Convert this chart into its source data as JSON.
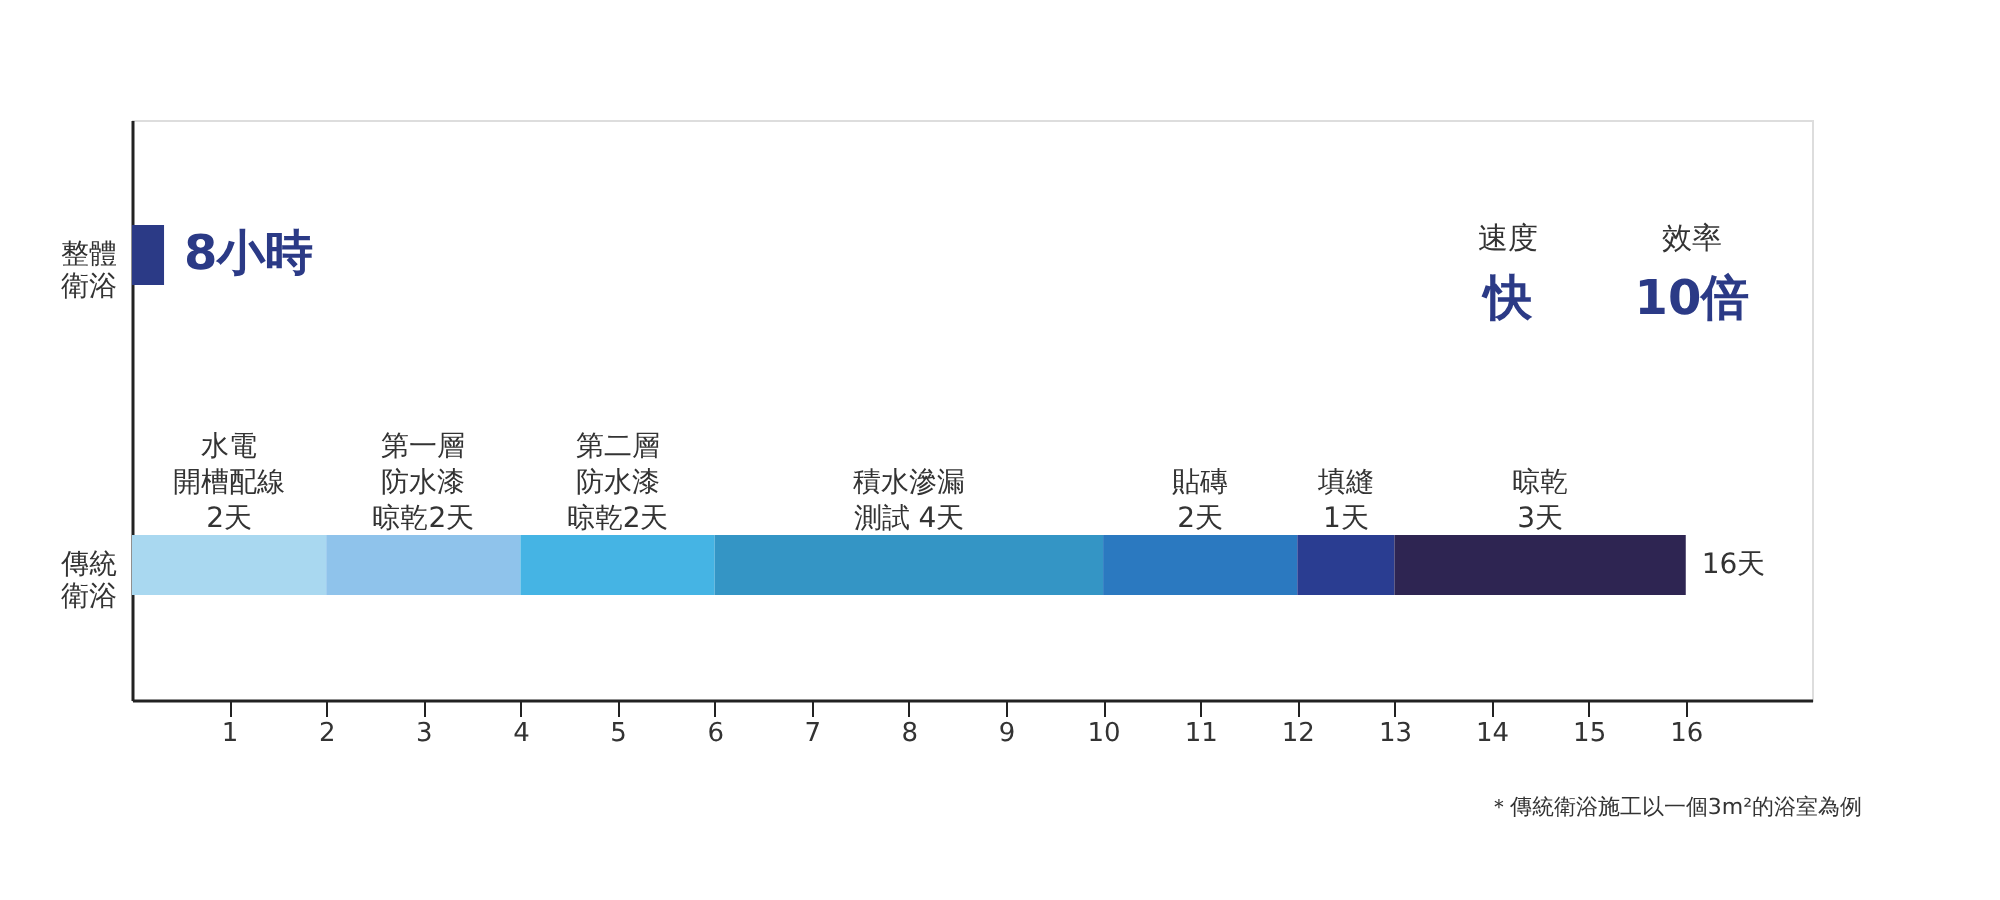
{
  "chart_data": {
    "type": "bar",
    "orientation": "horizontal",
    "stacked": true,
    "categories": [
      "整體衛浴",
      "傳統衛浴"
    ],
    "series": [
      {
        "color": "#2b3a86",
        "values": [
          0.33,
          null
        ]
      },
      {
        "name": "水電開槽配線",
        "color": "#a9d8f0",
        "values": [
          null,
          2
        ],
        "value_labels": [
          null,
          "2天"
        ]
      },
      {
        "name": "第一層防水漆晾乾",
        "color": "#8fc3eb",
        "values": [
          null,
          2
        ],
        "value_labels": [
          null,
          "2天"
        ]
      },
      {
        "name": "第二層防水漆晾乾",
        "color": "#45b4e4",
        "values": [
          null,
          2
        ],
        "value_labels": [
          null,
          "2天"
        ]
      },
      {
        "name": "積水滲漏測試",
        "color": "#3495c5",
        "values": [
          null,
          4
        ],
        "value_labels": [
          null,
          "4天"
        ]
      },
      {
        "name": "貼磚",
        "color": "#2b79c0",
        "values": [
          null,
          2
        ],
        "value_labels": [
          null,
          "2天"
        ]
      },
      {
        "name": "填縫",
        "color": "#2a3d91",
        "values": [
          null,
          1
        ],
        "value_labels": [
          null,
          "1天"
        ]
      },
      {
        "name": "晾乾",
        "color": "#2e2552",
        "values": [
          null,
          3
        ],
        "value_labels": [
          null,
          "3天"
        ]
      }
    ],
    "totals": [
      null,
      "16天"
    ],
    "xlim": [
      0,
      17.3
    ],
    "xticks": [
      1,
      2,
      3,
      4,
      5,
      6,
      7,
      8,
      9,
      10,
      11,
      12,
      13,
      14,
      15,
      16
    ],
    "grid": false,
    "legend": false,
    "annotations": [
      {
        "text": "8小時",
        "x": 0.33,
        "y": "整體衛浴"
      },
      "速度",
      "快",
      "效率",
      "10倍",
      "＊傳統衛浴施工以一個3m²的浴室為例"
    ]
  }
}
